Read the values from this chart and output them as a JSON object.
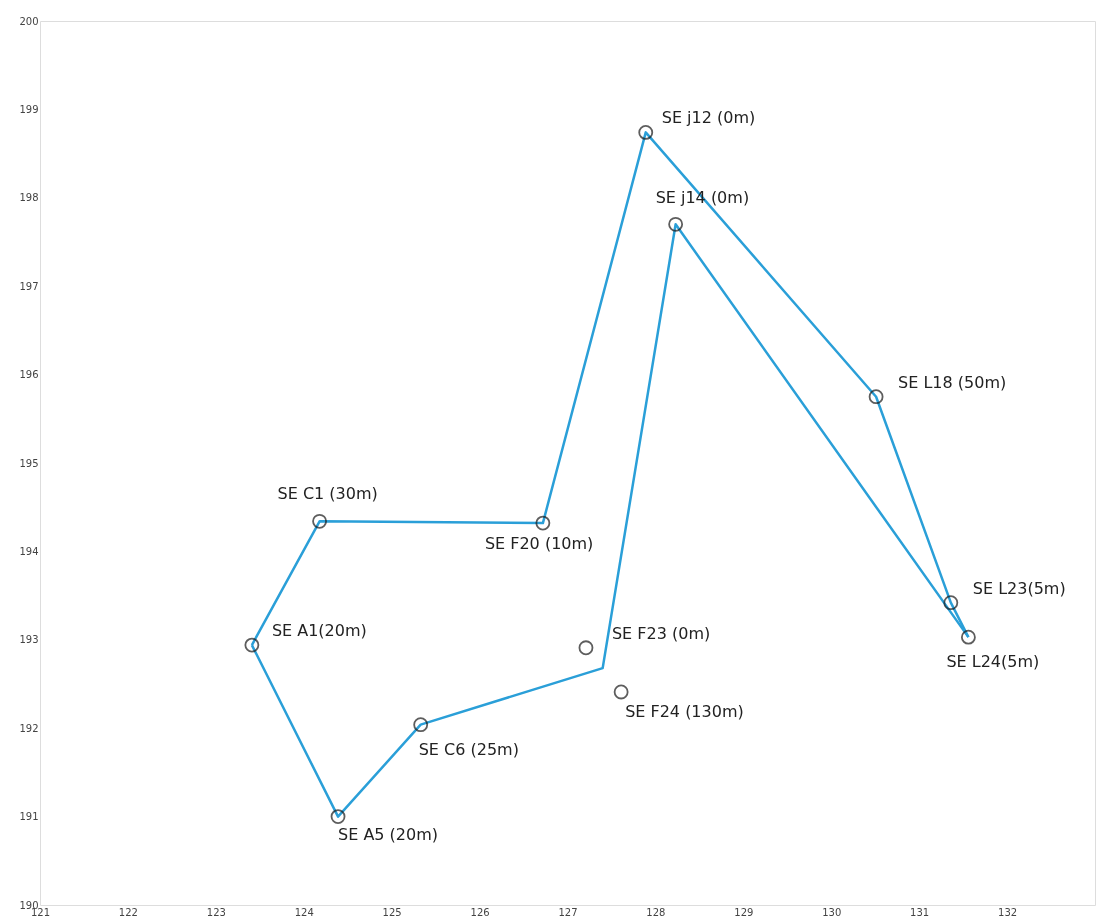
{
  "chart_data": {
    "type": "scatter",
    "xlim": [
      121,
      133
    ],
    "ylim": [
      190,
      200
    ],
    "xticks": [
      121,
      122,
      123,
      124,
      125,
      126,
      127,
      128,
      129,
      130,
      131,
      132
    ],
    "yticks": [
      190,
      191,
      192,
      193,
      194,
      195,
      196,
      197,
      198,
      199,
      200
    ],
    "grid": false,
    "series": [
      {
        "type": "line",
        "color": "#2a9fd8",
        "marker": "none",
        "line_style": "solid",
        "x": [
          123.41,
          124.18,
          126.72,
          127.89,
          130.51,
          131.36,
          131.56
        ],
        "values": [
          192.94,
          194.34,
          194.32,
          198.74,
          195.75,
          193.42,
          193.03
        ]
      },
      {
        "type": "line",
        "color": "#2a9fd8",
        "marker": "none",
        "line_style": "solid",
        "x": [
          123.41,
          124.39,
          125.33,
          127.4,
          128.23,
          131.56
        ],
        "values": [
          192.94,
          191.0,
          192.04,
          192.68,
          197.7,
          193.03
        ]
      },
      {
        "color": "#1a1a1a",
        "marker": "circle",
        "x": [
          123.41,
          124.39,
          124.18,
          125.33,
          126.72,
          127.21,
          127.61,
          127.89,
          128.23,
          130.51,
          131.36,
          131.56
        ],
        "values": [
          192.94,
          191.0,
          194.34,
          192.04,
          194.32,
          192.91,
          192.41,
          198.74,
          197.7,
          195.75,
          193.42,
          193.03
        ]
      }
    ],
    "annotations": [
      {
        "text": "SE A1(20m)",
        "x": 123.41,
        "y": 192.94
      },
      {
        "text": "SE A5 (20m)",
        "x": 124.39,
        "y": 191.0
      },
      {
        "text": "SE C1 (30m)",
        "x": 124.18,
        "y": 194.34
      },
      {
        "text": "SE C6 (25m)",
        "x": 125.33,
        "y": 192.04
      },
      {
        "text": "SE F20 (10m)",
        "x": 126.72,
        "y": 194.32
      },
      {
        "text": "SE F23 (0m)",
        "x": 127.21,
        "y": 192.91
      },
      {
        "text": "SE F24 (130m)",
        "x": 127.61,
        "y": 192.41
      },
      {
        "text": "SE j12 (0m)",
        "x": 127.89,
        "y": 198.74
      },
      {
        "text": "SE j14 (0m)",
        "x": 128.23,
        "y": 197.7
      },
      {
        "text": "SE L18 (50m)",
        "x": 130.51,
        "y": 195.75
      },
      {
        "text": "SE L23(5m)",
        "x": 131.36,
        "y": 193.42
      },
      {
        "text": "SE L24(5m)",
        "x": 131.56,
        "y": 193.03
      }
    ]
  }
}
